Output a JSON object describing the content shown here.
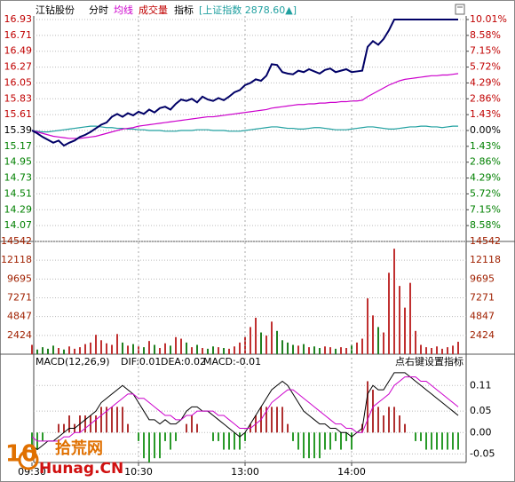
{
  "chart_data": [
    {
      "type": "line",
      "title": "江钻股份",
      "mode": "分时",
      "menu": "指标",
      "ylim": [
        13.85,
        16.93
      ],
      "yticks": [
        16.93,
        16.71,
        16.49,
        16.27,
        16.05,
        15.83,
        15.61,
        15.39,
        15.17,
        14.95,
        14.73,
        14.51,
        14.29,
        14.07
      ],
      "y2lim": [
        -10.01,
        10.01
      ],
      "y2ticks": [
        {
          "value": 10.01,
          "label": "10.01%"
        },
        {
          "value": 8.58,
          "label": "8.58%"
        },
        {
          "value": 7.15,
          "label": "7.15%"
        },
        {
          "value": 5.72,
          "label": "5.72%"
        },
        {
          "value": 4.29,
          "label": "4.29%"
        },
        {
          "value": 2.86,
          "label": "2.86%"
        },
        {
          "value": 1.43,
          "label": "1.43%"
        },
        {
          "value": 0,
          "label": "0.00%"
        },
        {
          "value": -1.43,
          "label": "1.43%"
        },
        {
          "value": -2.86,
          "label": "2.86%"
        },
        {
          "value": -4.29,
          "label": "4.29%"
        },
        {
          "value": -5.72,
          "label": "5.72%"
        },
        {
          "value": -7.15,
          "label": "7.15%"
        },
        {
          "value": -8.58,
          "label": "8.58%"
        }
      ],
      "grid": true,
      "up_color": "#c00000",
      "down_color": "#008000",
      "base_color": "#000000",
      "series": [
        {
          "color": "#000066",
          "values": [
            15.39,
            15.35,
            15.3,
            15.26,
            15.22,
            15.25,
            15.18,
            15.22,
            15.25,
            15.3,
            15.33,
            15.37,
            15.42,
            15.47,
            15.5,
            15.58,
            15.62,
            15.58,
            15.63,
            15.6,
            15.65,
            15.62,
            15.68,
            15.64,
            15.7,
            15.72,
            15.68,
            15.76,
            15.82,
            15.8,
            15.83,
            15.78,
            15.86,
            15.82,
            15.8,
            15.84,
            15.81,
            15.86,
            15.92,
            15.95,
            16.02,
            16.05,
            16.1,
            16.08,
            16.15,
            16.31,
            16.3,
            16.2,
            16.18,
            16.17,
            16.22,
            16.2,
            16.24,
            16.21,
            16.18,
            16.23,
            16.25,
            16.2,
            16.22,
            16.24,
            16.2,
            16.21,
            16.22,
            16.55,
            16.63,
            16.58,
            16.66,
            16.78,
            16.93,
            16.93,
            16.93,
            16.93,
            16.93,
            16.93,
            16.93,
            16.93,
            16.93,
            16.93,
            16.93,
            16.93,
            16.93
          ]
        },
        {
          "name": "均线",
          "color": "#cc00cc",
          "values": [
            15.39,
            15.37,
            15.35,
            15.33,
            15.31,
            15.3,
            15.29,
            15.28,
            15.28,
            15.28,
            15.29,
            15.3,
            15.31,
            15.33,
            15.35,
            15.37,
            15.39,
            15.41,
            15.42,
            15.43,
            15.45,
            15.46,
            15.47,
            15.48,
            15.49,
            15.5,
            15.51,
            15.52,
            15.53,
            15.54,
            15.55,
            15.56,
            15.57,
            15.58,
            15.58,
            15.59,
            15.6,
            15.61,
            15.62,
            15.63,
            15.64,
            15.65,
            15.66,
            15.67,
            15.68,
            15.7,
            15.71,
            15.72,
            15.73,
            15.74,
            15.75,
            15.75,
            15.76,
            15.76,
            15.77,
            15.77,
            15.78,
            15.78,
            15.79,
            15.79,
            15.8,
            15.8,
            15.81,
            15.86,
            15.9,
            15.94,
            15.98,
            16.02,
            16.05,
            16.08,
            16.1,
            16.11,
            16.12,
            16.13,
            16.14,
            16.15,
            16.15,
            16.16,
            16.16,
            16.17,
            16.18
          ]
        },
        {
          "name": "[上证指数 2878.60▲]",
          "color": "#20a0a0",
          "values": [
            15.39,
            15.38,
            15.37,
            15.37,
            15.38,
            15.39,
            15.4,
            15.41,
            15.42,
            15.43,
            15.44,
            15.45,
            15.45,
            15.44,
            15.43,
            15.43,
            15.42,
            15.42,
            15.41,
            15.41,
            15.4,
            15.4,
            15.39,
            15.39,
            15.39,
            15.38,
            15.38,
            15.38,
            15.39,
            15.39,
            15.39,
            15.4,
            15.4,
            15.4,
            15.39,
            15.39,
            15.39,
            15.38,
            15.38,
            15.38,
            15.39,
            15.4,
            15.41,
            15.42,
            15.43,
            15.44,
            15.44,
            15.43,
            15.42,
            15.42,
            15.41,
            15.41,
            15.42,
            15.43,
            15.43,
            15.42,
            15.41,
            15.4,
            15.4,
            15.4,
            15.41,
            15.42,
            15.43,
            15.44,
            15.44,
            15.43,
            15.42,
            15.41,
            15.41,
            15.42,
            15.43,
            15.44,
            15.44,
            15.45,
            15.45,
            15.44,
            15.44,
            15.43,
            15.44,
            15.45,
            15.45
          ]
        }
      ]
    },
    {
      "type": "bar",
      "title": "成交量",
      "ylim": [
        0,
        14542
      ],
      "yticks": [
        14542,
        12118,
        9695,
        7271,
        4847,
        2424
      ],
      "grid": true,
      "tick_color": "#a02000",
      "up_color": "#c03030",
      "down_color": "#208020",
      "values": [
        1200,
        600,
        900,
        700,
        1100,
        800,
        600,
        1000,
        700,
        900,
        1300,
        1500,
        2500,
        1800,
        1400,
        1200,
        2600,
        1500,
        1100,
        1300,
        1000,
        900,
        1700,
        1200,
        800,
        1400,
        1100,
        2200,
        2000,
        1500,
        900,
        1200,
        800,
        700,
        1000,
        900,
        800,
        700,
        1000,
        1500,
        2200,
        3500,
        4700,
        2800,
        2400,
        4200,
        3000,
        1800,
        1500,
        1200,
        1100,
        1300,
        900,
        1000,
        800,
        1000,
        900,
        700,
        900,
        800,
        1200,
        1500,
        2000,
        7200,
        5000,
        3500,
        2800,
        10500,
        13600,
        8800,
        6000,
        9200,
        3000,
        1200,
        900,
        800,
        1000,
        700,
        900,
        1100,
        1600
      ]
    },
    {
      "type": "macd",
      "title": "MACD(12,26,9)",
      "readouts": [
        "DIF:0.01",
        "DEA:0.02",
        "MACD:-0.01"
      ],
      "hint": "点右键设置指标",
      "ylim": [
        -0.07,
        0.15
      ],
      "yticks": [
        0.11,
        0.05,
        {
          "value": 0,
          "label": "0.00"
        },
        -0.05
      ],
      "grid": true,
      "up_color": "#b03030",
      "down_color": "#2a9a2a",
      "categories": [
        "09:30",
        null,
        null,
        null,
        null,
        null,
        null,
        null,
        null,
        null,
        null,
        null,
        null,
        null,
        null,
        null,
        null,
        null,
        null,
        null,
        "10:30",
        null,
        null,
        null,
        null,
        null,
        null,
        null,
        null,
        null,
        null,
        null,
        null,
        null,
        null,
        null,
        null,
        null,
        null,
        null,
        "13:00",
        null,
        null,
        null,
        null,
        null,
        null,
        null,
        null,
        null,
        null,
        null,
        null,
        null,
        null,
        null,
        null,
        null,
        null,
        null,
        "14:00",
        null,
        null,
        null,
        null,
        null,
        null,
        null,
        null,
        null,
        null,
        null,
        null,
        null,
        null,
        null,
        null,
        null,
        null,
        null,
        null
      ],
      "bars": [
        -0.04,
        -0.04,
        -0.02,
        0,
        0,
        0.02,
        0.02,
        0.04,
        0.02,
        0.04,
        0.04,
        0.04,
        0.04,
        0.06,
        0.06,
        0.06,
        0.06,
        0.06,
        0.02,
        0,
        -0.02,
        -0.06,
        -0.07,
        -0.06,
        -0.06,
        -0.02,
        -0.04,
        -0.02,
        0,
        0.02,
        0.04,
        0.02,
        0,
        0,
        -0.02,
        -0.02,
        -0.04,
        -0.04,
        -0.04,
        -0.04,
        -0.02,
        0.02,
        0.04,
        0.06,
        0.06,
        0.06,
        0.06,
        0.06,
        0.02,
        -0.02,
        -0.04,
        -0.06,
        -0.06,
        -0.06,
        -0.06,
        -0.04,
        -0.04,
        -0.02,
        -0.04,
        -0.02,
        -0.04,
        0,
        0.02,
        0.12,
        0.1,
        0.06,
        0.04,
        0.06,
        0.06,
        0.04,
        0.02,
        0,
        -0.02,
        -0.02,
        -0.04,
        -0.04,
        -0.04,
        -0.04,
        -0.04,
        -0.04,
        -0.04
      ],
      "series": [
        {
          "color": "#000000",
          "values": [
            -0.03,
            -0.04,
            -0.03,
            -0.02,
            -0.02,
            -0.01,
            0.0,
            0.01,
            0.01,
            0.02,
            0.03,
            0.04,
            0.05,
            0.07,
            0.08,
            0.09,
            0.1,
            0.11,
            0.1,
            0.09,
            0.07,
            0.05,
            0.03,
            0.03,
            0.02,
            0.03,
            0.02,
            0.02,
            0.03,
            0.05,
            0.06,
            0.06,
            0.05,
            0.05,
            0.04,
            0.03,
            0.02,
            0.01,
            0.0,
            -0.01,
            0.0,
            0.02,
            0.04,
            0.06,
            0.08,
            0.1,
            0.11,
            0.12,
            0.11,
            0.09,
            0.07,
            0.05,
            0.04,
            0.03,
            0.02,
            0.02,
            0.01,
            0.01,
            0.0,
            0.0,
            -0.01,
            0.0,
            0.01,
            0.09,
            0.11,
            0.1,
            0.1,
            0.12,
            0.14,
            0.14,
            0.14,
            0.13,
            0.12,
            0.11,
            0.1,
            0.09,
            0.08,
            0.07,
            0.06,
            0.05,
            0.04
          ]
        },
        {
          "color": "#cc00cc",
          "values": [
            -0.01,
            -0.02,
            -0.02,
            -0.02,
            -0.02,
            -0.02,
            -0.01,
            -0.01,
            0.0,
            0.0,
            0.01,
            0.02,
            0.03,
            0.04,
            0.05,
            0.06,
            0.07,
            0.08,
            0.09,
            0.09,
            0.08,
            0.08,
            0.07,
            0.06,
            0.05,
            0.04,
            0.04,
            0.03,
            0.03,
            0.04,
            0.04,
            0.05,
            0.05,
            0.05,
            0.05,
            0.04,
            0.04,
            0.03,
            0.02,
            0.01,
            0.01,
            0.01,
            0.02,
            0.03,
            0.05,
            0.07,
            0.08,
            0.09,
            0.1,
            0.1,
            0.09,
            0.08,
            0.07,
            0.06,
            0.05,
            0.04,
            0.03,
            0.02,
            0.02,
            0.01,
            0.01,
            0.0,
            0.0,
            0.03,
            0.06,
            0.07,
            0.08,
            0.09,
            0.11,
            0.12,
            0.13,
            0.13,
            0.13,
            0.12,
            0.12,
            0.11,
            0.1,
            0.09,
            0.08,
            0.07,
            0.06
          ]
        }
      ]
    }
  ],
  "watermark": {
    "number": "10",
    "name": "拾荒网",
    "site": "Hunag.CN"
  }
}
